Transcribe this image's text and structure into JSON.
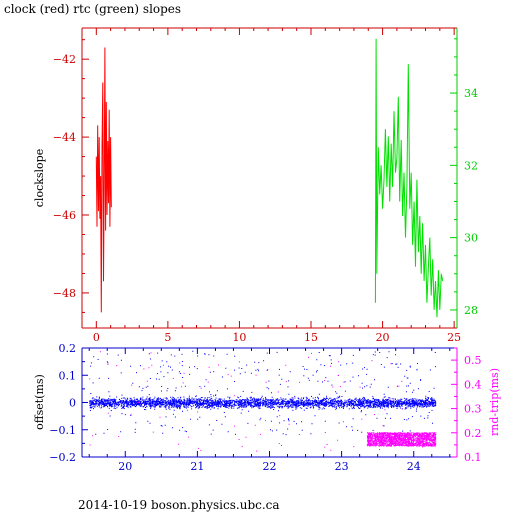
{
  "title": "clock (red) rtc (green) slopes",
  "footer": "2014-10-19  boson.physics.ubc.ca",
  "colors": {
    "axis_top": "#cc0000",
    "axis_top_right": "#00cc00",
    "axis_bottom": "#0000cc",
    "axis_bottom_right": "#ff00ff",
    "clock": "#ff0000",
    "rtc": "#00e000",
    "offset": "#0000ff",
    "rtt": "#ff00ff"
  },
  "chart_data": [
    {
      "type": "line",
      "ylabel": "clockslope",
      "xlim": [
        -1,
        25.2
      ],
      "ylim": [
        -48.9,
        -41.2
      ],
      "xticks": [
        0,
        5,
        10,
        15,
        20,
        25
      ],
      "yticks": [
        -42,
        -44,
        -46,
        -48
      ],
      "y2lim": [
        27.5,
        35.8
      ],
      "y2ticks": [
        28,
        30,
        32,
        34
      ],
      "series": [
        {
          "axis": "left",
          "x": [
            0.0,
            0.05,
            0.1,
            0.15,
            0.2,
            0.25,
            0.3,
            0.35,
            0.4,
            0.45,
            0.5,
            0.55,
            0.6,
            0.65,
            0.7,
            0.75,
            0.8,
            0.85,
            0.9,
            0.95,
            1.0,
            1.05
          ],
          "y": [
            -44.5,
            -46.3,
            -43.7,
            -45.9,
            -44.0,
            -46.1,
            -45.0,
            -48.5,
            -44.3,
            -42.6,
            -47.7,
            -45.2,
            -41.7,
            -46.4,
            -43.1,
            -46.0,
            -44.1,
            -45.7,
            -43.3,
            -46.3,
            -44.0,
            -45.8
          ]
        },
        {
          "axis": "right",
          "x": [
            19.5,
            19.55,
            19.6,
            19.7,
            19.8,
            19.9,
            20.0,
            20.1,
            20.2,
            20.3,
            20.4,
            20.5,
            20.6,
            20.7,
            20.8,
            20.9,
            21.0,
            21.1,
            21.2,
            21.3,
            21.4,
            21.5,
            21.6,
            21.7,
            21.8,
            21.9,
            22.0,
            22.1,
            22.2,
            22.3,
            22.4,
            22.5,
            22.6,
            22.7,
            22.8,
            22.9,
            23.0,
            23.1,
            23.2,
            23.3,
            23.4,
            23.5,
            23.6,
            23.7,
            23.8,
            23.9,
            24.0,
            24.1,
            24.2
          ],
          "y": [
            28.2,
            35.5,
            29.0,
            32.5,
            31.2,
            32.0,
            30.8,
            31.6,
            33.0,
            31.4,
            32.8,
            31.0,
            32.6,
            31.4,
            33.5,
            31.8,
            32.2,
            33.9,
            31.0,
            32.7,
            30.6,
            31.8,
            30.0,
            31.4,
            34.8,
            30.8,
            31.8,
            29.8,
            31.0,
            29.2,
            31.6,
            29.6,
            30.6,
            29.0,
            30.4,
            28.8,
            29.8,
            28.2,
            29.2,
            30.0,
            28.4,
            29.4,
            28.0,
            28.8,
            27.8,
            29.1,
            28.0,
            29.0,
            28.8
          ]
        }
      ]
    },
    {
      "type": "scatter",
      "ylabel": "offset(ms)",
      "y2label": "rnd-trip(ms)",
      "xlim": [
        19.4,
        24.6
      ],
      "ylim": [
        -0.2,
        0.2
      ],
      "xticks": [
        20,
        21,
        22,
        23,
        24
      ],
      "yticks": [
        0.2,
        0.1,
        0,
        -0.1,
        -0.2
      ],
      "y2lim": [
        0.1,
        0.55
      ],
      "y2ticks": [
        0.5,
        0.4,
        0.3,
        0.2,
        0.1
      ],
      "series": [
        {
          "axis": "left",
          "x_range": [
            19.5,
            24.3
          ],
          "y_center": 0.0,
          "y_band": 0.012,
          "sparse_y_range": [
            -0.12,
            0.19
          ]
        },
        {
          "axis": "right",
          "x_range": [
            23.35,
            24.3
          ],
          "y_center": 0.175,
          "y_band": 0.028,
          "sparse_y_range": [
            0.12,
            0.55
          ]
        }
      ]
    }
  ]
}
